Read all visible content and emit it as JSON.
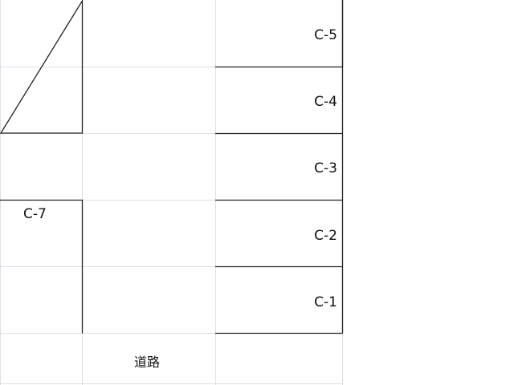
{
  "lots": [
    {
      "label": "C-5"
    },
    {
      "label": "C-4"
    },
    {
      "label": "C-3"
    },
    {
      "label": "C-2"
    },
    {
      "label": "C-1"
    },
    {
      "label": "C-7"
    }
  ],
  "road_label": "道路",
  "colors": {
    "gridline": "#dde0e6",
    "border": "#222222"
  }
}
